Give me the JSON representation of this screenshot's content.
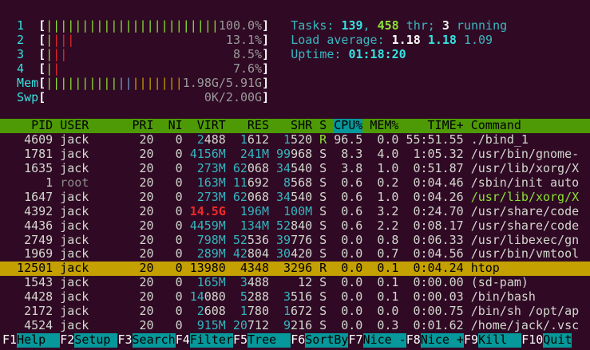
{
  "meter_brackets": [
    "[",
    "]"
  ],
  "meters": [
    {
      "label": "1",
      "bars": [
        {
          "text": "||||||||||||||||||||||||",
          "color": "#8ae234"
        }
      ],
      "value": "100.0%"
    },
    {
      "label": "2",
      "bars": [
        {
          "text": "|",
          "color": "#8ae234"
        },
        {
          "text": "|||",
          "color": "#ef2929"
        }
      ],
      "value": "13.1%"
    },
    {
      "label": "3",
      "bars": [
        {
          "text": "|",
          "color": "#8ae234"
        },
        {
          "text": "||",
          "color": "#ef2929"
        }
      ],
      "value": "8.5%"
    },
    {
      "label": "4",
      "bars": [
        {
          "text": "|",
          "color": "#8ae234"
        },
        {
          "text": "|",
          "color": "#ef2929"
        }
      ],
      "value": "7.6%"
    },
    {
      "label": "Mem",
      "bars": [
        {
          "text": "||||||||||",
          "color": "#8ae234"
        },
        {
          "text": "||",
          "color": "#729fcf"
        },
        {
          "text": "|||||||",
          "color": "#c4a000"
        }
      ],
      "value": "1.98G/5.91G"
    },
    {
      "label": "Swp",
      "bars": [],
      "value": "0K/2.00G"
    }
  ],
  "summary": [
    [
      {
        "text": "Tasks: ",
        "color": "#3ab7c0"
      },
      {
        "text": "139",
        "color": "#34e2e2",
        "bold": true
      },
      {
        "text": ", ",
        "color": "#3ab7c0"
      },
      {
        "text": "458",
        "color": "#8ae234",
        "bold": true
      },
      {
        "text": " thr; ",
        "color": "#3ab7c0"
      },
      {
        "text": "3",
        "color": "#eeeeec",
        "bold": true
      },
      {
        "text": " running",
        "color": "#3ab7c0"
      }
    ],
    [
      {
        "text": "Load average: ",
        "color": "#3ab7c0"
      },
      {
        "text": "1.18 ",
        "color": "#ffffff",
        "bold": true
      },
      {
        "text": "1.18 ",
        "color": "#34e2e2",
        "bold": true
      },
      {
        "text": "1.09",
        "color": "#3ab7c0"
      }
    ],
    [
      {
        "text": "Uptime: ",
        "color": "#3ab7c0"
      },
      {
        "text": "01:18:20",
        "color": "#34e2e2",
        "bold": true
      }
    ]
  ],
  "table": {
    "header": [
      "PID",
      "USER",
      "PRI",
      "NI",
      "VIRT",
      "RES",
      "SHR",
      "S",
      "CPU%",
      "MEM%",
      "TIME+",
      "Command"
    ],
    "sort_column": 8,
    "selected_row": 9,
    "thread_rows": [
      4
    ],
    "rows": [
      [
        "4609",
        "jack",
        "20",
        "0",
        "2488",
        "1612",
        "1520",
        "R",
        "96.5",
        "0.0",
        "55:51.55",
        "./bind_1"
      ],
      [
        "1781",
        "jack",
        "20",
        "0",
        "4156M",
        "241M",
        "99968",
        "S",
        "8.3",
        "4.0",
        "1:05.32",
        "/usr/bin/gnome-"
      ],
      [
        "1635",
        "jack",
        "20",
        "0",
        "273M",
        "62068",
        "34540",
        "S",
        "3.8",
        "1.0",
        "0:51.87",
        "/usr/lib/xorg/X"
      ],
      [
        "1",
        "root",
        "20",
        "0",
        "163M",
        "11692",
        "8568",
        "S",
        "0.6",
        "0.2",
        "0:04.46",
        "/sbin/init auto"
      ],
      [
        "1647",
        "jack",
        "20",
        "0",
        "273M",
        "62068",
        "34540",
        "S",
        "0.6",
        "1.0",
        "0:04.26",
        "/usr/lib/xorg/X"
      ],
      [
        "4392",
        "jack",
        "20",
        "0",
        "14.5G",
        "196M",
        "100M",
        "S",
        "0.6",
        "3.2",
        "0:24.70",
        "/usr/share/code"
      ],
      [
        "4436",
        "jack",
        "20",
        "0",
        "4459M",
        "134M",
        "52840",
        "S",
        "0.6",
        "2.2",
        "0:08.17",
        "/usr/share/code"
      ],
      [
        "2749",
        "jack",
        "20",
        "0",
        "798M",
        "52536",
        "39776",
        "S",
        "0.0",
        "0.8",
        "0:06.33",
        "/usr/libexec/gn"
      ],
      [
        "1969",
        "jack",
        "20",
        "0",
        "289M",
        "42804",
        "30420",
        "S",
        "0.0",
        "0.7",
        "0:04.56",
        "/usr/bin/vmtool"
      ],
      [
        "12501",
        "jack",
        "20",
        "0",
        "13980",
        "4348",
        "3296",
        "R",
        "0.0",
        "0.1",
        "0:04.24",
        "htop"
      ],
      [
        "1543",
        "jack",
        "20",
        "0",
        "165M",
        "3488",
        "12",
        "S",
        "0.0",
        "0.1",
        "0:00.00",
        "(sd-pam)"
      ],
      [
        "4428",
        "jack",
        "20",
        "0",
        "14080",
        "5288",
        "3516",
        "S",
        "0.0",
        "0.1",
        "0:00.03",
        "/bin/bash"
      ],
      [
        "2172",
        "jack",
        "20",
        "0",
        "2608",
        "1780",
        "1672",
        "S",
        "0.0",
        "0.0",
        "0:00.75",
        "/bin/sh /opt/ap"
      ],
      [
        "4524",
        "jack",
        "20",
        "0",
        "915M",
        "20712",
        "9216",
        "S",
        "0.0",
        "0.3",
        "0:01.62",
        "/home/jack/.vsc"
      ]
    ]
  },
  "footer": [
    {
      "key": "F1",
      "label": "Help"
    },
    {
      "key": "F2",
      "label": "Setup"
    },
    {
      "key": "F3",
      "label": "Search"
    },
    {
      "key": "F4",
      "label": "Filter"
    },
    {
      "key": "F5",
      "label": "Tree"
    },
    {
      "key": "F6",
      "label": "SortBy"
    },
    {
      "key": "F7",
      "label": "Nice -"
    },
    {
      "key": "F8",
      "label": "Nice +"
    },
    {
      "key": "F9",
      "label": "Kill"
    },
    {
      "key": "F10",
      "label": "Quit"
    }
  ]
}
